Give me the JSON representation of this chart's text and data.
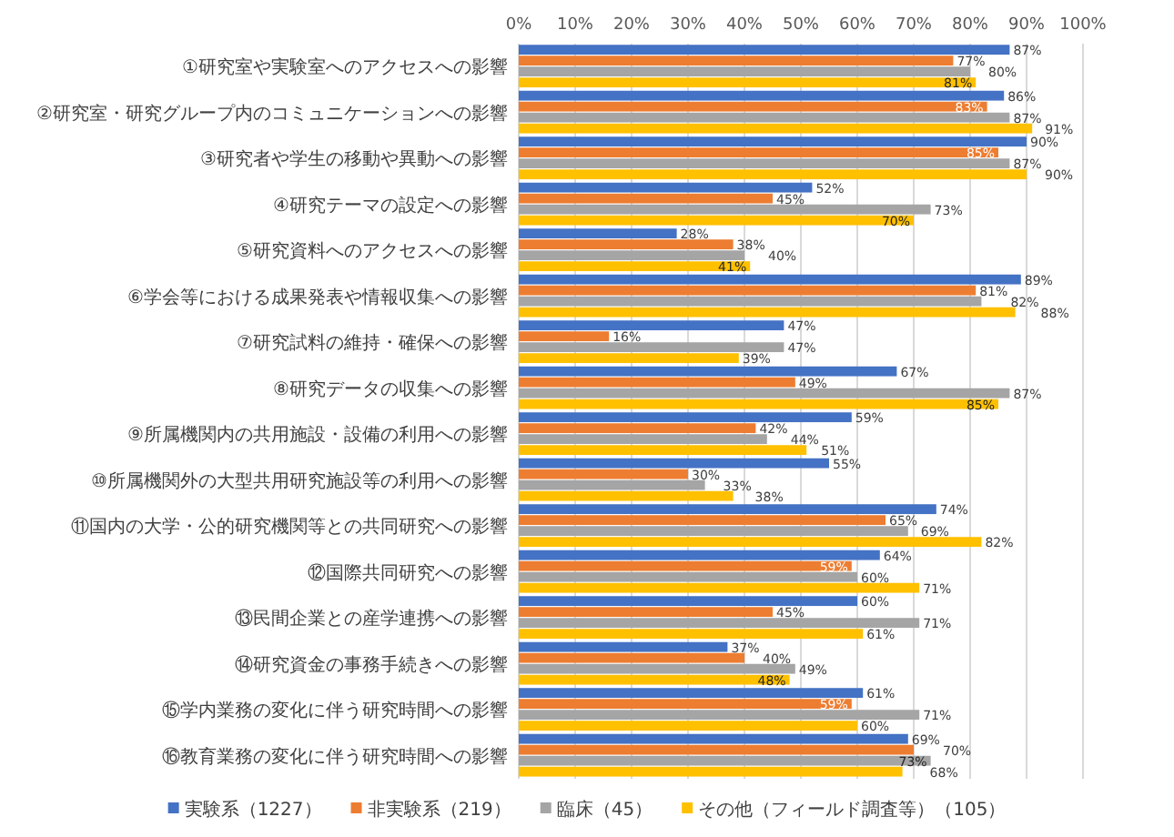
{
  "chart_data": {
    "type": "bar",
    "orientation": "horizontal",
    "categories": [
      "①研究室や実験室へのアクセスへの影響",
      "②研究室・研究グループ内のコミュニケーションへの影響",
      "③研究者や学生の移動や異動への影響",
      "④研究テーマの設定への影響",
      "⑤研究資料へのアクセスへの影響",
      "⑥学会等における成果発表や情報収集への影響",
      "⑦研究試料の維持・確保への影響",
      "⑧研究データの収集への影響",
      "⑨所属機関内の共用施設・設備の利用への影響",
      "⑩所属機関外の大型共用研究施設等の利用への影響",
      "⑪国内の大学・公的研究機関等との共同研究への影響",
      "⑫国際共同研究への影響",
      "⑬民間企業との産学連携への影響",
      "⑭研究資金の事務手続きへの影響",
      "⑮学内業務の変化に伴う研究時間への影響",
      "⑯教育業務の変化に伴う研究時間への影響"
    ],
    "series": [
      {
        "name": "実験系（1227）",
        "color": "#4472c4",
        "values": [
          87,
          86,
          90,
          52,
          28,
          89,
          47,
          67,
          59,
          55,
          74,
          64,
          60,
          37,
          61,
          69
        ],
        "value_labels": [
          "87%",
          "86%",
          "90%",
          "52%",
          "28%",
          "89%",
          "47%",
          "67%",
          "59%",
          "55%",
          "74%",
          "64%",
          "60%",
          "37%",
          "61%",
          "69%"
        ]
      },
      {
        "name": "非実験系（219）",
        "color": "#ed7d31",
        "values": [
          77,
          83,
          85,
          45,
          38,
          81,
          16,
          49,
          42,
          30,
          65,
          59,
          45,
          40,
          59,
          70
        ],
        "value_labels": [
          "77%",
          "83%",
          "85%",
          "45%",
          "38%",
          "81%",
          "16%",
          "49%",
          "42%",
          "30%",
          "65%",
          "59%",
          "45%",
          "40%",
          "59%",
          "70%"
        ]
      },
      {
        "name": "臨床（45）",
        "color": "#a5a5a5",
        "values": [
          80,
          87,
          87,
          73,
          40,
          82,
          47,
          87,
          44,
          33,
          69,
          60,
          71,
          49,
          71,
          73
        ],
        "value_labels": [
          "80%",
          "87%",
          "87%",
          "73%",
          "40%",
          "82%",
          "47%",
          "87%",
          "44%",
          "33%",
          "69%",
          "60%",
          "71%",
          "49%",
          "71%",
          "73%"
        ]
      },
      {
        "name": "その他（フィールド調査等）（105）",
        "color": "#ffc000",
        "values": [
          81,
          91,
          90,
          70,
          41,
          88,
          39,
          85,
          51,
          38,
          82,
          71,
          61,
          48,
          60,
          68
        ],
        "value_labels": [
          "81%",
          "91%",
          "90%",
          "70%",
          "41%",
          "88%",
          "39%",
          "85%",
          "51%",
          "38%",
          "82%",
          "71%",
          "61%",
          "48%",
          "60%",
          "68%"
        ]
      }
    ],
    "xlim": [
      0,
      100
    ],
    "xticks": [
      {
        "value": 0,
        "label": "0%"
      },
      {
        "value": 10,
        "label": "10%"
      },
      {
        "value": 20,
        "label": "20%"
      },
      {
        "value": 30,
        "label": "30%"
      },
      {
        "value": 40,
        "label": "40%"
      },
      {
        "value": 50,
        "label": "50%"
      },
      {
        "value": 60,
        "label": "60%"
      },
      {
        "value": 70,
        "label": "70%"
      },
      {
        "value": 80,
        "label": "80%"
      },
      {
        "value": 90,
        "label": "90%"
      },
      {
        "value": 100,
        "label": "100%"
      }
    ],
    "grid": "x",
    "legend": "bottom"
  }
}
